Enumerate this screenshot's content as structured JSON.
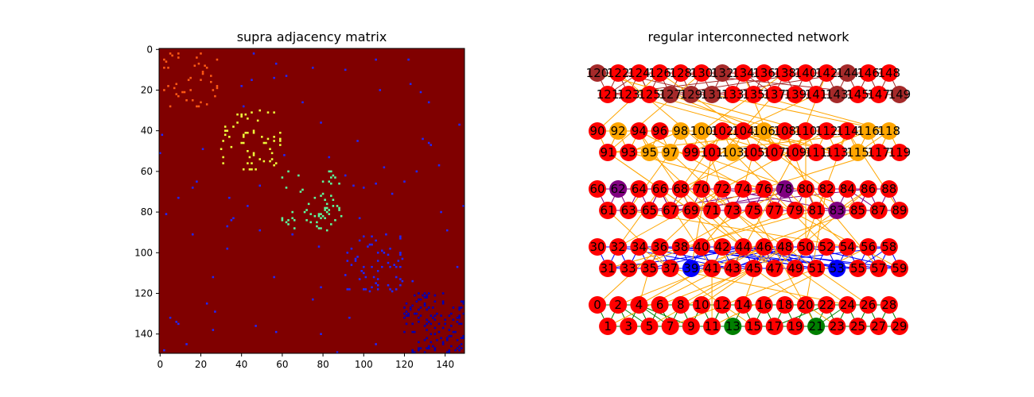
{
  "chart_data": [
    {
      "type": "heatmap",
      "title": "supra adjacency matrix",
      "xlabel": "",
      "ylabel": "",
      "xlim": [
        0,
        150
      ],
      "ylim": [
        150,
        0
      ],
      "x_ticks": [
        "0",
        "20",
        "40",
        "60",
        "80",
        "100",
        "120",
        "140"
      ],
      "y_ticks": [
        "0",
        "20",
        "40",
        "60",
        "80",
        "100",
        "120",
        "140"
      ],
      "matrix_size": 150,
      "colormap": "jet",
      "background_color": "#800000",
      "blocks": [
        {
          "range": [
            0,
            29
          ],
          "color": "#ff5a14",
          "density": 0.05
        },
        {
          "range": [
            30,
            59
          ],
          "color": "#f0ff3c",
          "density": 0.05
        },
        {
          "range": [
            60,
            89
          ],
          "color": "#5affa0",
          "density": 0.05
        },
        {
          "range": [
            90,
            119
          ],
          "color": "#1e28ff",
          "density": 0.07
        },
        {
          "range": [
            120,
            149
          ],
          "color": "#0000b4",
          "density": 0.12
        }
      ],
      "interlayer_color": "#1e28ff",
      "interlayer_density": 0.004
    },
    {
      "type": "network",
      "title": "regular interconnected network",
      "node_count": 150,
      "layers": [
        {
          "nodes": [
            0,
            29
          ],
          "node_color": "#ff0000",
          "special_nodes": [
            13,
            21
          ],
          "special_color": "#008000",
          "edge_color": "#008000"
        },
        {
          "nodes": [
            30,
            59
          ],
          "node_color": "#ff0000",
          "special_nodes": [
            39,
            53
          ],
          "special_color": "#0000ff",
          "edge_color": "#0000ff"
        },
        {
          "nodes": [
            60,
            89
          ],
          "node_color": "#ff0000",
          "special_nodes": [
            62,
            78,
            83
          ],
          "special_color": "#800080",
          "edge_color": "#800080"
        },
        {
          "nodes": [
            90,
            119
          ],
          "node_color": "#ff0000",
          "special_nodes": [
            92,
            95,
            97,
            98,
            100,
            103,
            106,
            115,
            116,
            118
          ],
          "special_color": "#ffa500",
          "edge_color": "#ffa500"
        },
        {
          "nodes": [
            120,
            149
          ],
          "node_color": "#ff0000",
          "special_nodes": [
            120,
            127,
            129,
            131,
            132,
            143,
            144,
            149
          ],
          "special_color": "#a52a2a",
          "edge_color": "#a52a2a"
        }
      ],
      "interlayer_edge_color": "#ffa500"
    }
  ]
}
